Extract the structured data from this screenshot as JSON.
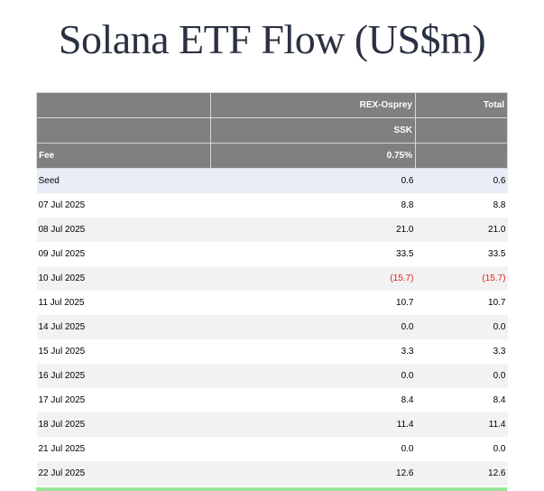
{
  "title": "Solana ETF Flow (US$m)",
  "header": {
    "row1": [
      "",
      "REX-Osprey",
      "Total"
    ],
    "row2": [
      "",
      "SSK",
      ""
    ],
    "row3": [
      "Fee",
      "0.75%",
      ""
    ]
  },
  "rows": [
    {
      "date": "Seed",
      "ssk": "0.6",
      "total": "0.6",
      "negative": false
    },
    {
      "date": "07 Jul 2025",
      "ssk": "8.8",
      "total": "8.8",
      "negative": false
    },
    {
      "date": "08 Jul 2025",
      "ssk": "21.0",
      "total": "21.0",
      "negative": false
    },
    {
      "date": "09 Jul 2025",
      "ssk": "33.5",
      "total": "33.5",
      "negative": false
    },
    {
      "date": "10 Jul 2025",
      "ssk": "(15.7)",
      "total": "(15.7)",
      "negative": true
    },
    {
      "date": "11 Jul 2025",
      "ssk": "10.7",
      "total": "10.7",
      "negative": false
    },
    {
      "date": "14 Jul 2025",
      "ssk": "0.0",
      "total": "0.0",
      "negative": false
    },
    {
      "date": "15 Jul 2025",
      "ssk": "3.3",
      "total": "3.3",
      "negative": false
    },
    {
      "date": "16 Jul 2025",
      "ssk": "0.0",
      "total": "0.0",
      "negative": false
    },
    {
      "date": "17 Jul 2025",
      "ssk": "8.4",
      "total": "8.4",
      "negative": false
    },
    {
      "date": "18 Jul 2025",
      "ssk": "11.4",
      "total": "11.4",
      "negative": false
    },
    {
      "date": "21 Jul 2025",
      "ssk": "0.0",
      "total": "0.0",
      "negative": false
    },
    {
      "date": "22 Jul 2025",
      "ssk": "12.6",
      "total": "12.6",
      "negative": false
    }
  ],
  "colors": {
    "header_bg": "#808080",
    "seed_bg": "#e8edf7",
    "stripe_bg": "#f2f2f2",
    "negative": "#e0201b",
    "total_bar": "#9ae59a"
  }
}
